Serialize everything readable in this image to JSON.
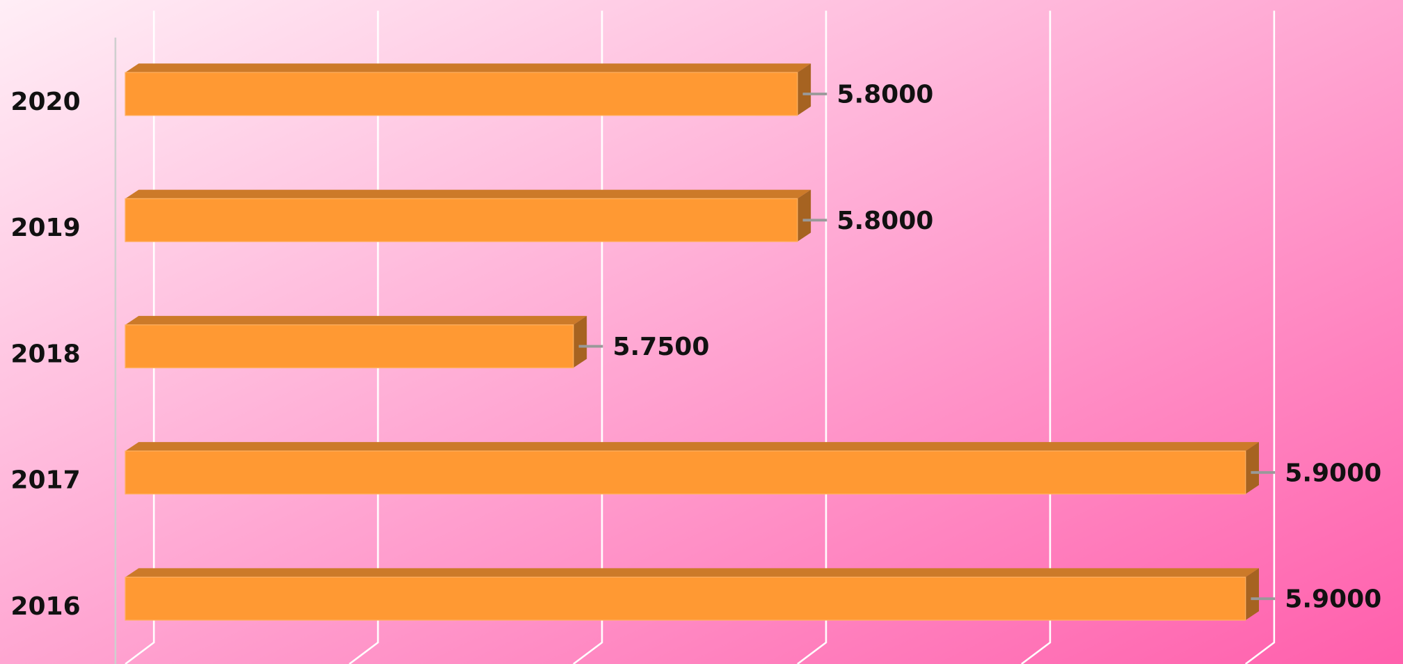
{
  "chart_data": {
    "type": "bar3d",
    "orientation": "horizontal",
    "categories": [
      "2016",
      "2017",
      "2018",
      "2019",
      "2020"
    ],
    "values": [
      5.9,
      5.9,
      5.75,
      5.8,
      5.8
    ],
    "value_labels": [
      "5.9000",
      "5.9000",
      "5.7500",
      "5.8000",
      "5.8000"
    ],
    "color": "#ff9933",
    "xlim": [
      5.65,
      5.9
    ],
    "xticks": [
      5.65,
      5.7,
      5.75,
      5.8,
      5.85,
      5.9
    ],
    "grid": true
  }
}
